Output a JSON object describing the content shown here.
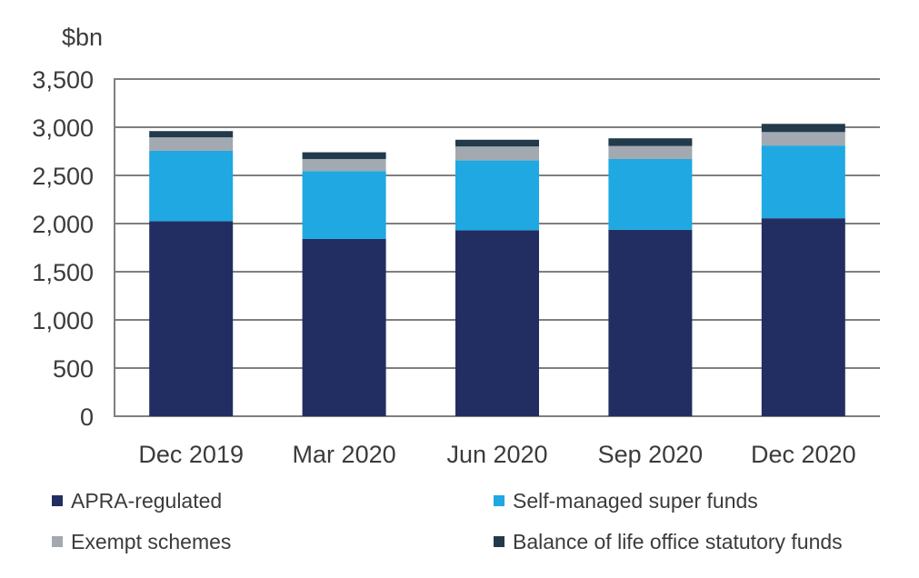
{
  "chart_data": {
    "type": "bar",
    "stacked": true,
    "title": "",
    "ylabel": "$bn",
    "xlabel": "",
    "categories": [
      "Dec 2019",
      "Mar 2020",
      "Jun 2020",
      "Sep 2020",
      "Dec 2020"
    ],
    "series": [
      {
        "name": "APRA-regulated",
        "color": "#222e62",
        "values": [
          2025,
          1840,
          1930,
          1935,
          2055
        ]
      },
      {
        "name": "Self-managed super funds",
        "color": "#1fa8e1",
        "values": [
          730,
          705,
          725,
          735,
          755
        ]
      },
      {
        "name": "Exempt schemes",
        "color": "#a2a9b0",
        "values": [
          140,
          125,
          145,
          135,
          140
        ]
      },
      {
        "name": "Balance of life office statutory funds",
        "color": "#223a4b",
        "values": [
          65,
          70,
          70,
          80,
          85
        ]
      }
    ],
    "totals": [
      2960,
      2740,
      2870,
      2885,
      3035
    ],
    "ylim": [
      0,
      3500
    ],
    "ytick_step": 500,
    "ytick_labels": [
      "0",
      "500",
      "1,000",
      "1,500",
      "2,000",
      "2,500",
      "3,000",
      "3,500"
    ],
    "grid": "horizontal gridlines every 500, no right border",
    "gridline_color": "#7f7f7f",
    "axis_text_color": "#3b3b3b",
    "legend_position": "bottom, two columns by two rows"
  }
}
